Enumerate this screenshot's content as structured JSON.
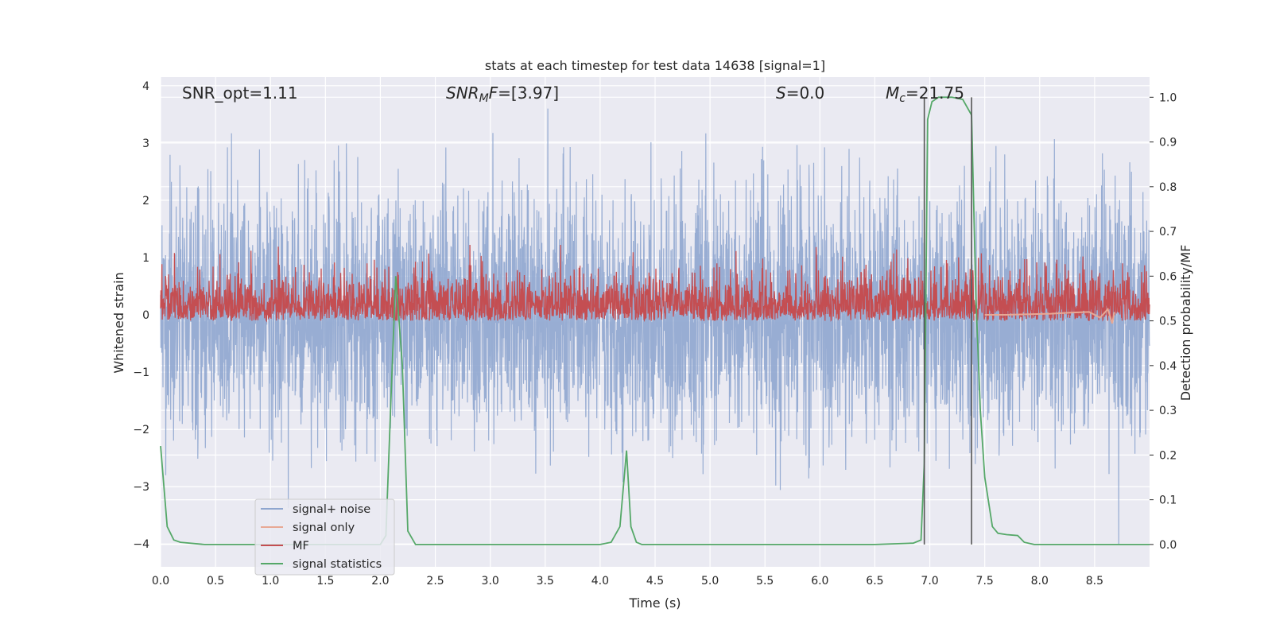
{
  "chart_data": {
    "type": "line",
    "title": "stats at each timestep for test data 14638 [signal=1]",
    "xlabel": "Time (s)",
    "ylabel_left": "Whitened strain",
    "ylabel_right": "Detection probability/MF",
    "xlim": [
      0,
      9.0
    ],
    "ylim_left": [
      -4.4,
      4.15
    ],
    "ylim_right": [
      -0.05,
      1.045
    ],
    "x_ticks": [
      "0.0",
      "0.5",
      "1.0",
      "1.5",
      "2.0",
      "2.5",
      "3.0",
      "3.5",
      "4.0",
      "4.5",
      "5.0",
      "5.5",
      "6.0",
      "6.5",
      "7.0",
      "7.5",
      "8.0",
      "8.5"
    ],
    "y_ticks_left": [
      "−4",
      "−3",
      "−2",
      "−1",
      "0",
      "1",
      "2",
      "3",
      "4"
    ],
    "y_ticks_right": [
      "0.0",
      "0.1",
      "0.2",
      "0.3",
      "0.4",
      "0.5",
      "0.6",
      "0.7",
      "0.8",
      "0.9",
      "1.0"
    ],
    "grid": true,
    "legend_position": "lower-left",
    "annotations": {
      "snr_opt": "SNR_opt=1.11",
      "snr_mf_main": "SNR",
      "snr_mf_sub": "M",
      "snr_mf_rest": "F=[3.97]",
      "s_main": "S",
      "s_rest": "=0.0",
      "mc_main": "M",
      "mc_sub": "c",
      "mc_rest": "=21.75"
    },
    "vlines_x": [
      6.95,
      7.38
    ],
    "series": [
      {
        "name": "signal+ noise",
        "color": "#8fa6cf",
        "axis": "left",
        "x_range": [
          0,
          9.0
        ],
        "amplitude_rms": 1.0
      },
      {
        "name": "signal only",
        "color": "#e8a894",
        "axis": "left",
        "x": [
          7.5,
          7.7,
          7.9,
          8.1,
          8.3,
          8.45,
          8.55,
          8.62,
          8.66,
          8.68
        ],
        "y": [
          0.0,
          0.0,
          0.01,
          0.02,
          0.04,
          0.05,
          -0.05,
          0.1,
          -0.15,
          0.05
        ]
      },
      {
        "name": "MF",
        "color": "#c44e52",
        "axis": "right",
        "x_range": [
          0,
          9.0
        ],
        "baseline": 0.5,
        "max_value": 0.67
      },
      {
        "name": "signal statistics",
        "color": "#55a868",
        "axis": "right",
        "x": [
          0.0,
          0.06,
          0.12,
          0.18,
          0.4,
          1.0,
          1.5,
          2.0,
          2.05,
          2.1,
          2.14,
          2.2,
          2.25,
          2.32,
          2.5,
          3.0,
          3.5,
          4.0,
          4.1,
          4.18,
          4.24,
          4.28,
          4.33,
          4.38,
          4.5,
          5.0,
          5.5,
          6.0,
          6.5,
          6.85,
          6.92,
          6.95,
          6.98,
          7.02,
          7.08,
          7.2,
          7.3,
          7.38,
          7.42,
          7.46,
          7.5,
          7.57,
          7.62,
          7.7,
          7.8,
          7.86,
          7.95,
          8.0,
          8.5,
          9.0
        ],
        "y": [
          0.22,
          0.04,
          0.01,
          0.005,
          0.0,
          0.0,
          0.0,
          0.0,
          0.02,
          0.35,
          0.6,
          0.4,
          0.03,
          0.0,
          0.0,
          0.0,
          0.0,
          0.0,
          0.005,
          0.04,
          0.21,
          0.04,
          0.005,
          0.0,
          0.0,
          0.0,
          0.0,
          0.0,
          0.0,
          0.003,
          0.01,
          0.18,
          0.95,
          0.99,
          1.0,
          1.0,
          0.995,
          0.96,
          0.55,
          0.3,
          0.15,
          0.04,
          0.025,
          0.022,
          0.02,
          0.005,
          0.0,
          0.0,
          0.0,
          0.0
        ]
      }
    ]
  }
}
